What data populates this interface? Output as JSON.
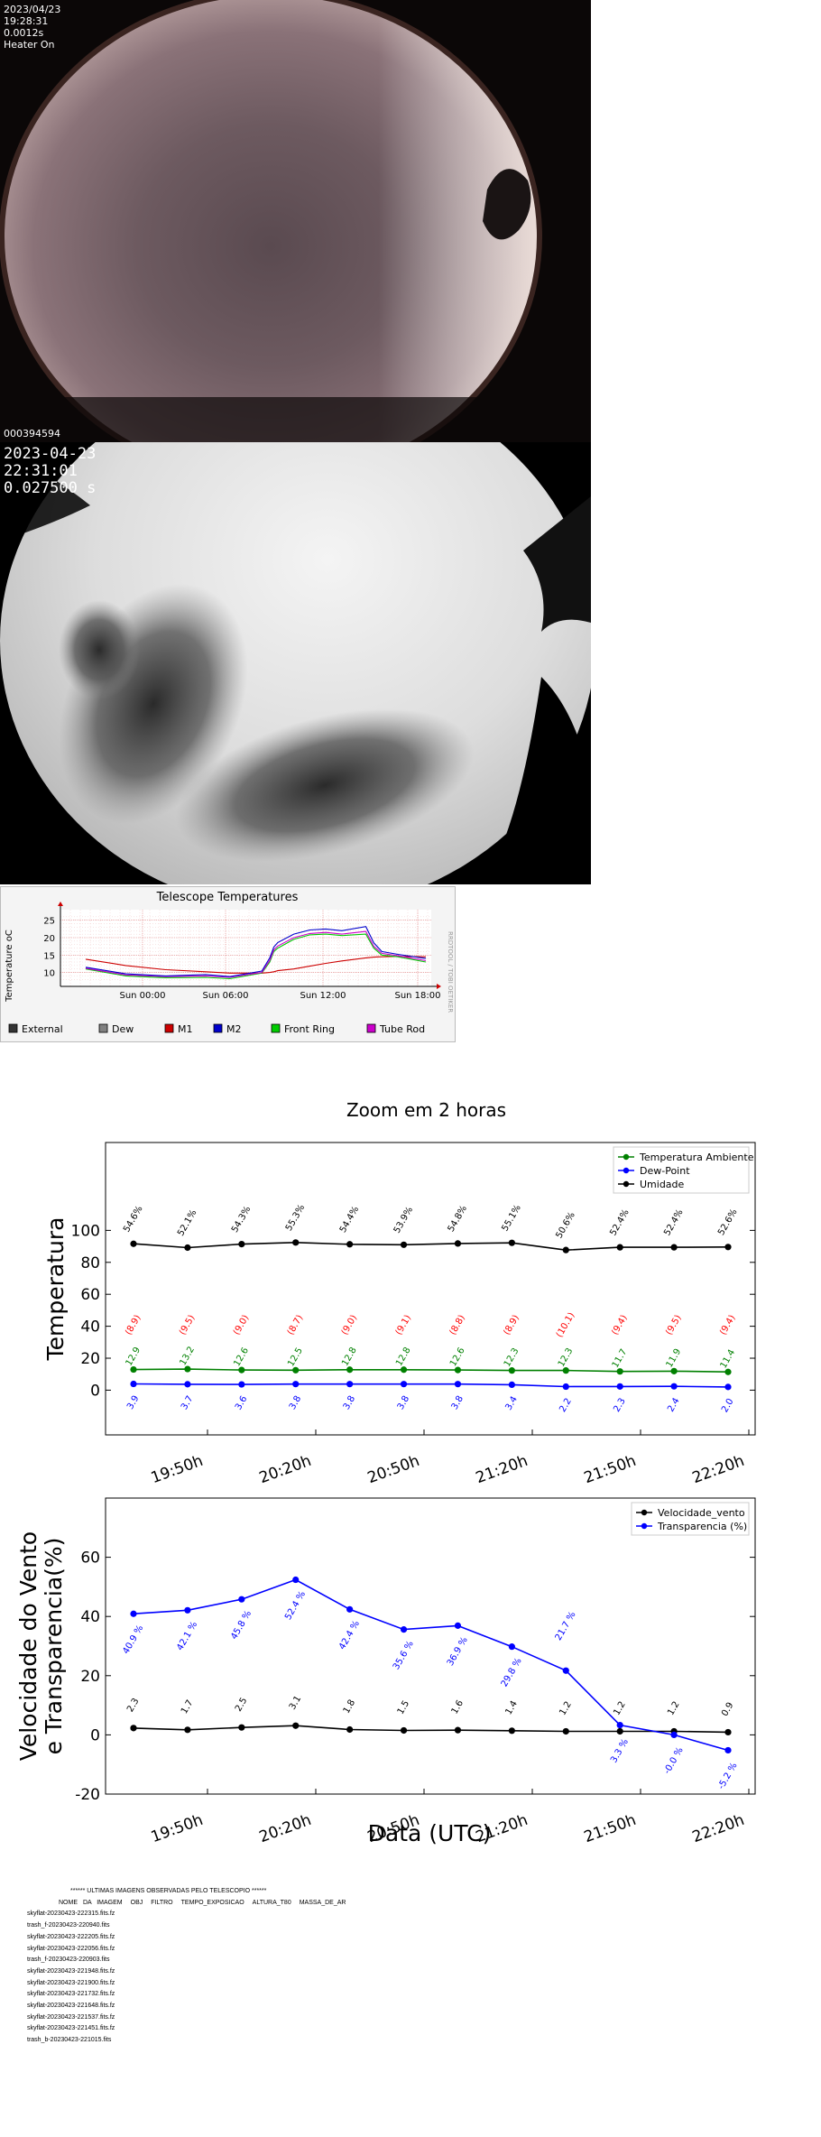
{
  "camera1": {
    "date": "2023/04/23",
    "time": "19:28:31",
    "exposure": "0.0012s",
    "heater": "Heater On",
    "serial": "000394594"
  },
  "camera2": {
    "date": "2023-04-23",
    "time": "22:31:01",
    "exposure": "0.027500 s"
  },
  "telescope_chart": {
    "title": "Telescope Temperatures",
    "ylabel": "Temperature oC",
    "side_label": "RRDTOOL / TOBI OETIKER",
    "y_ticks": [
      "25",
      "20",
      "15",
      "10"
    ],
    "x_ticks": [
      "Sun 00:00",
      "Sun 06:00",
      "Sun 12:00",
      "Sun 18:00"
    ],
    "legend": [
      {
        "label": "External",
        "color": "#333333"
      },
      {
        "label": "Dew",
        "color": "#808080"
      },
      {
        "label": "M1",
        "color": "#cc0000"
      },
      {
        "label": "M2",
        "color": "#0000cc"
      },
      {
        "label": "Front Ring",
        "color": "#00cc00"
      },
      {
        "label": "Tube Rod",
        "color": "#cc00cc"
      }
    ]
  },
  "zoom_title": "Zoom em 2 horas",
  "chart_data": [
    {
      "type": "line",
      "ylabel": "Temperatura",
      "ylim": [
        -28,
        155
      ],
      "y_ticks": [
        0,
        20,
        40,
        60,
        80,
        100
      ],
      "x_ticks": [
        "19:50h",
        "20:20h",
        "20:50h",
        "21:20h",
        "21:50h",
        "22:20h"
      ],
      "legend_position": "top-right",
      "series": [
        {
          "name": "Temperatura Ambiente",
          "color": "#008000",
          "values": [
            12.9,
            13.2,
            12.6,
            12.5,
            12.8,
            12.8,
            12.6,
            12.3,
            12.3,
            11.7,
            11.9,
            11.4
          ],
          "labels": [
            "12.9",
            "13.2",
            "12.6",
            "12.5",
            "12.8",
            "12.8",
            "12.6",
            "12.3",
            "12.3",
            "11.7",
            "11.9",
            "11.4"
          ]
        },
        {
          "name": "Dew-Point",
          "color": "#0000ff",
          "values": [
            3.9,
            3.7,
            3.6,
            3.8,
            3.8,
            3.8,
            3.8,
            3.4,
            2.2,
            2.3,
            2.4,
            2.0
          ],
          "labels": [
            "3.9",
            "3.7",
            "3.6",
            "3.8",
            "3.8",
            "3.8",
            "3.8",
            "3.4",
            "2.2",
            "2.3",
            "2.4",
            "2.0"
          ]
        },
        {
          "name": "Umidade",
          "color": "#000000",
          "values": [
            91.6,
            89.2,
            91.4,
            92.4,
            91.3,
            91.0,
            91.8,
            92.2,
            87.7,
            89.4,
            89.4,
            89.6
          ],
          "labels": [
            "54.6%",
            "52.1%",
            "54.3%",
            "55.3%",
            "54.4%",
            "53.9%",
            "54.8%",
            "55.1%",
            "50.6%",
            "52.4%",
            "52.4%",
            "52.6%"
          ]
        }
      ],
      "red_labels": [
        "(8.9)",
        "(9.5)",
        "(9.0)",
        "(8.7)",
        "(9.0)",
        "(9.1)",
        "(8.8)",
        "(8.9)",
        "(10.1)",
        "(9.4)",
        "(9.5)",
        "(9.4)"
      ]
    },
    {
      "type": "line",
      "xlabel": "Data (UTC)",
      "ylabel_line1": "Velocidade do Vento",
      "ylabel_line2": "e Transparencia(%)",
      "ylim": [
        -20,
        80
      ],
      "y_ticks": [
        -20,
        0,
        20,
        40,
        60
      ],
      "x_ticks": [
        "19:50h",
        "20:20h",
        "20:50h",
        "21:20h",
        "21:50h",
        "22:20h"
      ],
      "legend_position": "top-right",
      "series": [
        {
          "name": "Velocidade_vento",
          "color": "#000000",
          "values": [
            2.3,
            1.7,
            2.5,
            3.1,
            1.8,
            1.5,
            1.6,
            1.4,
            1.2,
            1.2,
            1.2,
            0.9
          ],
          "labels": [
            "2.3",
            "1.7",
            "2.5",
            "3.1",
            "1.8",
            "1.5",
            "1.6",
            "1.4",
            "1.2",
            "1.2",
            "1.2",
            "0.9"
          ]
        },
        {
          "name": "Transparencia (%)",
          "color": "#0000ff",
          "values": [
            40.9,
            42.1,
            45.8,
            52.4,
            42.4,
            35.6,
            36.9,
            29.8,
            21.7,
            3.3,
            -0.0,
            -5.2
          ],
          "labels": [
            "40.9 %",
            "42.1 %",
            "45.8 %",
            "52.4 %",
            "42.4 %",
            "35.6 %",
            "36.9 %",
            "29.8 %",
            "21.7 %",
            "3.3 %",
            "-0.0 %",
            "-5.2 %"
          ]
        }
      ]
    }
  ],
  "image_list": {
    "title": "****** ULTIMAS IMAGENS OBSERVADAS PELO TELESCOPIO ******",
    "columns": [
      "NOME DA IMAGEM",
      "OBJ",
      "FILTRO",
      "TEMPO_EXPOSICAO",
      "ALTURA_T80",
      "MASSA_DE_AR"
    ],
    "files": [
      "skyflat-20230423-222315.fits.fz",
      "trash_f-20230423-220940.fits",
      "skyflat-20230423-222205.fits.fz",
      "skyflat-20230423-222056.fits.fz",
      "trash_f-20230423-220903.fits",
      "skyflat-20230423-221948.fits.fz",
      "skyflat-20230423-221900.fits.fz",
      "skyflat-20230423-221732.fits.fz",
      "skyflat-20230423-221648.fits.fz",
      "skyflat-20230423-221537.fits.fz",
      "skyflat-20230423-221451.fits.fz",
      "trash_b-20230423-221015.fits"
    ]
  }
}
